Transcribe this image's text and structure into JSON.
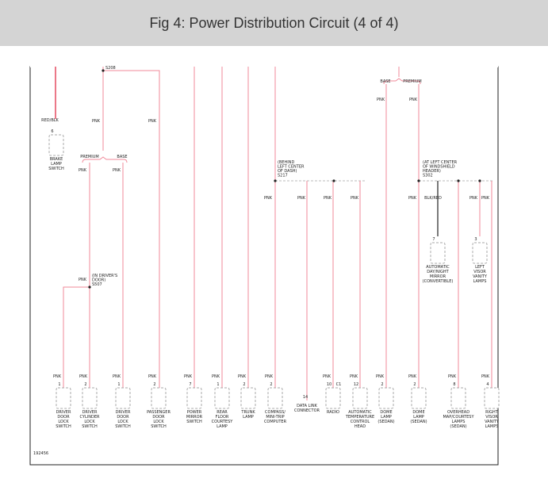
{
  "header": {
    "title": "Fig 4: Power Distribution Circuit (4 of 4)"
  },
  "components": [
    {
      "lines": [
        "BRAKE",
        "LAMP",
        "SWITCH"
      ],
      "pin": "6",
      "wire": "RED/BLK"
    },
    {
      "lines": [
        "DRIVER",
        "DOOR",
        "LOCK",
        "SWITCH"
      ],
      "pin": "1",
      "wire": "PNK"
    },
    {
      "lines": [
        "DRIVER",
        "CYLINDER",
        "LOCK",
        "SWITCH"
      ],
      "pin": "2",
      "wire": "PNK"
    },
    {
      "lines": [
        "DRIVER",
        "DOOR",
        "LOCK",
        "SWITCH"
      ],
      "pin": "1",
      "wire": "PNK"
    },
    {
      "lines": [
        "PASSENGER",
        "DOOR",
        "LOCK",
        "SWITCH"
      ],
      "pin": "2",
      "wire": "PNK"
    },
    {
      "lines": [
        "POWER",
        "MIRROR",
        "SWITCH"
      ],
      "pin": "7",
      "wire": "PNK"
    },
    {
      "lines": [
        "REAR",
        "FLOOR",
        "COURTESY",
        "LAMP"
      ],
      "pin": "1",
      "wire": "PNK"
    },
    {
      "lines": [
        "TRUNK",
        "LAMP"
      ],
      "pin": "2",
      "wire": "PNK"
    },
    {
      "lines": [
        "COMPASS/",
        "MINI-TRIP",
        "COMPUTER"
      ],
      "pin": "2",
      "wire": "PNK"
    },
    {
      "lines": [
        "DATA LINK",
        "CONNECTOR"
      ],
      "pin": "14"
    },
    {
      "lines": [
        "RADIO"
      ],
      "pin": "10",
      "connector": "C1",
      "wire": "PNK"
    },
    {
      "lines": [
        "AUTOMATIC",
        "TEMPERATURE",
        "CONTROL",
        "HEAD"
      ],
      "pin": "12",
      "wire": "PNK"
    },
    {
      "lines": [
        "DOME",
        "LAMP",
        "(SEDAN)"
      ],
      "pin": "2",
      "wire": "PNK"
    },
    {
      "lines": [
        "DOME",
        "LAMP",
        "(SEDAN)"
      ],
      "pin": "2",
      "wire": "PNK"
    },
    {
      "lines": [
        "OVERHEAD",
        "MAP/COURTESY",
        "LAMPS",
        "(SEDAN)"
      ],
      "pin": "8",
      "wire": "PNK"
    },
    {
      "lines": [
        "RIGHT",
        "VISOR",
        "VANITY",
        "LAMPS"
      ],
      "pin": "4",
      "wire": "PNK"
    },
    {
      "lines": [
        "AUTOMATIC",
        "DAY/NIGHT",
        "MIRROR",
        "(CONVERTIBLE)"
      ],
      "pin": "7",
      "wire": "BLK/RED"
    },
    {
      "lines": [
        "LEFT",
        "VISOR",
        "VANITY",
        "LAMPS"
      ],
      "pin": "3",
      "wire": "PNK"
    }
  ],
  "wire_labels": [
    "PNK",
    "PNK",
    "PNK",
    "PNK",
    "PNK",
    "PNK",
    "PNK",
    "PNK",
    "PNK",
    "PNK",
    "PNK",
    "PNK",
    "PNK"
  ],
  "splices": [
    {
      "lines": [
        "S208"
      ]
    },
    {
      "lines": [
        "(IN DRIVER'S",
        "DOOR)",
        "S507"
      ]
    },
    {
      "lines": [
        "(BEHIND",
        "LEFT CENTER",
        "OF DASH)",
        "S217"
      ]
    },
    {
      "lines": [
        "(AT LEFT CENTER",
        "OF WINDSHIELD",
        "HEADER)",
        "S302"
      ]
    }
  ],
  "branches": [
    "PREMIUM",
    "BASE",
    "BASE",
    "PREMIUM"
  ],
  "figure_id": "192456"
}
